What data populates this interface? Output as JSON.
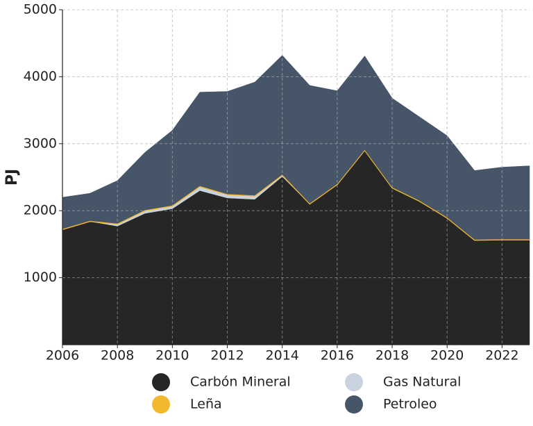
{
  "chart_data": {
    "type": "stacked-area",
    "ylabel": "PJ",
    "x": [
      2006,
      2007,
      2008,
      2009,
      2010,
      2011,
      2012,
      2013,
      2014,
      2015,
      2016,
      2017,
      2018,
      2019,
      2020,
      2021,
      2022,
      2023
    ],
    "series": [
      {
        "name": "Carbón Mineral",
        "color": "#262626",
        "values": [
          1720,
          1840,
          1770,
          1960,
          2030,
          2300,
          2190,
          2170,
          2510,
          2100,
          2390,
          2900,
          2340,
          2140,
          1890,
          1560,
          1565,
          1565
        ]
      },
      {
        "name": "Gas Natural",
        "color": "#c9d3e0",
        "values": [
          0,
          0,
          30,
          40,
          40,
          60,
          50,
          50,
          20,
          0,
          0,
          0,
          0,
          0,
          0,
          0,
          0,
          0
        ]
      },
      {
        "name": "Leña",
        "color": "#f4b82e",
        "values": [
          10,
          10,
          10,
          10,
          10,
          10,
          10,
          10,
          10,
          10,
          10,
          10,
          10,
          10,
          10,
          10,
          10,
          10
        ]
      },
      {
        "name": "Petroleo",
        "color": "#475569",
        "values": [
          470,
          410,
          640,
          860,
          1120,
          1400,
          1530,
          1690,
          1780,
          1760,
          1390,
          1400,
          1330,
          1250,
          1220,
          1030,
          1075,
          1095
        ]
      }
    ],
    "xlim": [
      2006,
      2023
    ],
    "xticks": [
      2006,
      2008,
      2010,
      2012,
      2014,
      2016,
      2018,
      2020,
      2022
    ],
    "ylim": [
      0,
      5000
    ],
    "yticks": [
      1000,
      2000,
      3000,
      4000,
      5000
    ],
    "grid": true
  }
}
